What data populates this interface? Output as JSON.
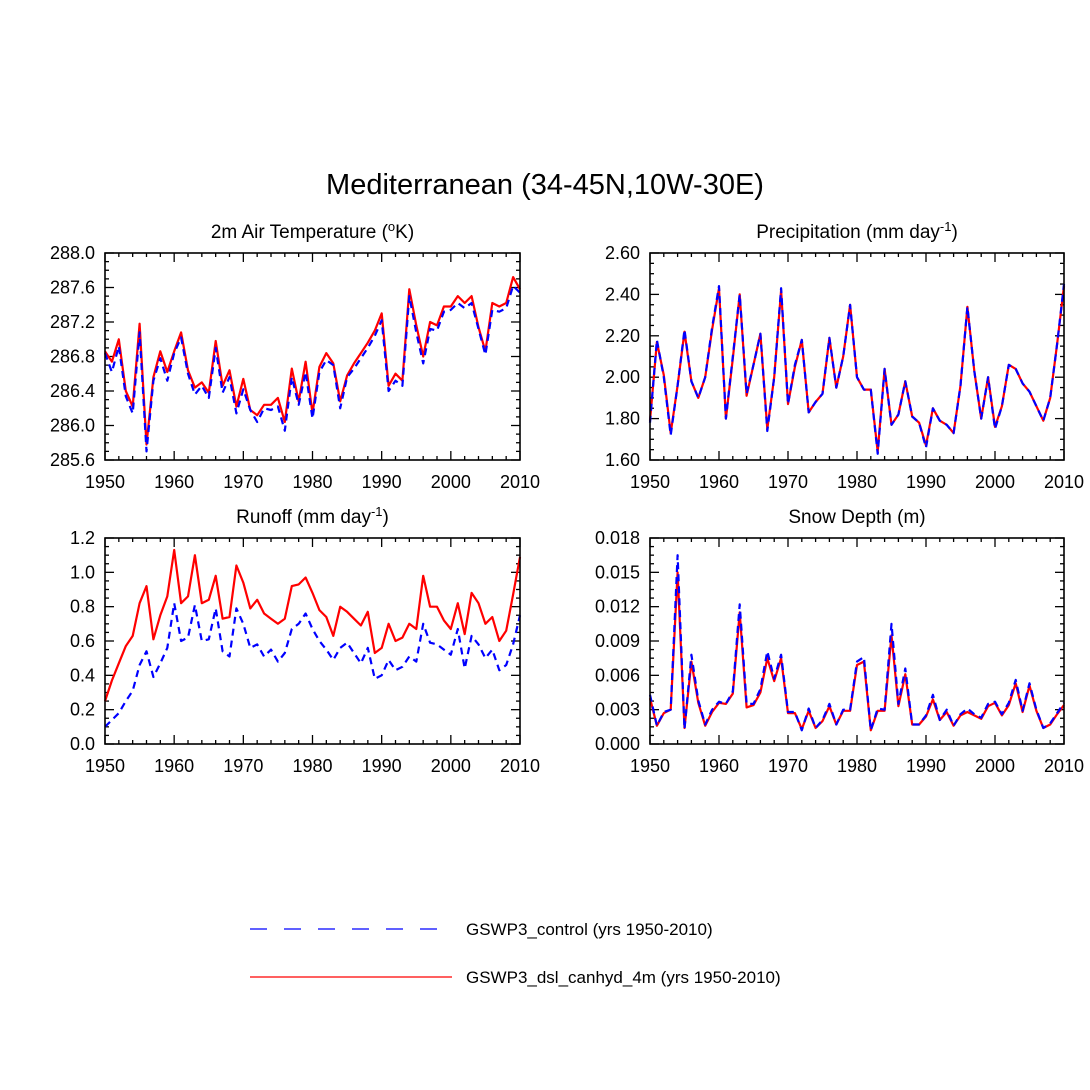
{
  "title": "Mediterranean (34-45N,10W-30E)",
  "colors": {
    "control": "#0000ff",
    "experiment": "#ff0000",
    "axis": "#000000"
  },
  "legend": [
    {
      "key": "control",
      "label": "GSWP3_control (yrs 1950-2010)",
      "style": "dashed"
    },
    {
      "key": "experiment",
      "label": "GSWP3_dsl_canhyd_4m (yrs 1950-2010)",
      "style": "solid"
    }
  ],
  "chart_data": [
    {
      "type": "line",
      "title": "2m Air Temperature (°K)",
      "title_parts": {
        "pre": "2m Air Temperature (",
        "sup": "o",
        "post": "K)"
      },
      "xlim": [
        1950,
        2010
      ],
      "ylim": [
        285.6,
        288.0
      ],
      "xticks": [
        1950,
        1960,
        1970,
        1980,
        1990,
        2000,
        2010
      ],
      "xtick_labels": [
        "1950",
        "1960",
        "1970",
        "1980",
        "1990",
        "2000",
        "2010"
      ],
      "yticks": [
        285.6,
        286.0,
        286.4,
        286.8,
        287.2,
        287.6,
        288.0
      ],
      "ytick_labels": [
        "285.6",
        "286.0",
        "286.4",
        "286.8",
        "287.2",
        "287.6",
        "288.0"
      ],
      "x_start": 1950,
      "series": [
        {
          "name": "GSWP3_control",
          "key": "control",
          "values": [
            286.84,
            286.62,
            286.92,
            286.34,
            286.14,
            287.08,
            285.7,
            286.52,
            286.78,
            286.52,
            286.84,
            287.02,
            286.6,
            286.36,
            286.46,
            286.32,
            286.9,
            286.38,
            286.56,
            286.14,
            286.42,
            286.18,
            286.04,
            286.2,
            286.18,
            286.22,
            285.94,
            286.56,
            286.24,
            286.62,
            286.08,
            286.62,
            286.76,
            286.7,
            286.2,
            286.56,
            286.66,
            286.78,
            286.9,
            287.04,
            287.22,
            286.4,
            286.52,
            286.46,
            287.5,
            287.08,
            286.72,
            287.12,
            287.1,
            287.32,
            287.34,
            287.42,
            287.36,
            287.42,
            287.12,
            286.82,
            287.34,
            287.32,
            287.36,
            287.62,
            287.54
          ]
        },
        {
          "name": "GSWP3_dsl_canhyd_4m",
          "key": "experiment",
          "values": [
            286.86,
            286.74,
            287.0,
            286.4,
            286.22,
            287.18,
            285.78,
            286.56,
            286.86,
            286.62,
            286.86,
            287.08,
            286.64,
            286.44,
            286.5,
            286.38,
            286.98,
            286.46,
            286.64,
            286.22,
            286.54,
            286.18,
            286.12,
            286.24,
            286.24,
            286.32,
            286.04,
            286.66,
            286.28,
            286.74,
            286.14,
            286.68,
            286.84,
            286.72,
            286.28,
            286.58,
            286.72,
            286.84,
            286.96,
            287.1,
            287.3,
            286.46,
            286.6,
            286.52,
            287.58,
            287.16,
            286.8,
            287.2,
            287.16,
            287.38,
            287.38,
            287.5,
            287.42,
            287.5,
            287.14,
            286.86,
            287.42,
            287.38,
            287.42,
            287.72,
            287.58
          ]
        }
      ]
    },
    {
      "type": "line",
      "title": "Precipitation (mm day-1)",
      "title_parts": {
        "pre": "Precipitation (mm day",
        "sup": "-1",
        "post": ")"
      },
      "xlim": [
        1950,
        2010
      ],
      "ylim": [
        1.6,
        2.6
      ],
      "xticks": [
        1950,
        1960,
        1970,
        1980,
        1990,
        2000,
        2010
      ],
      "xtick_labels": [
        "1950",
        "1960",
        "1970",
        "1980",
        "1990",
        "2000",
        "2010"
      ],
      "yticks": [
        1.6,
        1.8,
        2.0,
        2.2,
        2.4,
        2.6
      ],
      "ytick_labels": [
        "1.60",
        "1.80",
        "2.00",
        "2.20",
        "2.40",
        "2.60"
      ],
      "x_start": 1950,
      "series": [
        {
          "name": "GSWP3_control",
          "key": "control",
          "values": [
            1.78,
            2.18,
            2.0,
            1.72,
            1.96,
            2.23,
            1.98,
            1.9,
            2.0,
            2.24,
            2.44,
            1.8,
            2.1,
            2.4,
            1.92,
            2.06,
            2.21,
            1.74,
            2.0,
            2.43,
            1.87,
            2.06,
            2.18,
            1.83,
            1.88,
            1.92,
            2.19,
            1.95,
            2.1,
            2.35,
            2.0,
            1.94,
            1.94,
            1.63,
            2.04,
            1.77,
            1.82,
            1.98,
            1.81,
            1.78,
            1.66,
            1.85,
            1.79,
            1.77,
            1.73,
            1.96,
            2.34,
            2.03,
            1.8,
            2.0,
            1.75,
            1.86,
            2.06,
            2.04,
            1.97,
            1.93,
            1.86,
            1.79,
            1.9,
            2.16,
            2.45
          ]
        },
        {
          "name": "GSWP3_dsl_canhyd_4m",
          "key": "experiment",
          "values": [
            1.79,
            2.17,
            2.01,
            1.73,
            1.96,
            2.22,
            1.98,
            1.9,
            2.0,
            2.23,
            2.43,
            1.8,
            2.09,
            2.4,
            1.91,
            2.06,
            2.21,
            1.75,
            2.0,
            2.42,
            1.87,
            2.05,
            2.18,
            1.83,
            1.88,
            1.92,
            2.19,
            1.95,
            2.1,
            2.35,
            2.0,
            1.94,
            1.94,
            1.64,
            2.04,
            1.77,
            1.82,
            1.98,
            1.81,
            1.78,
            1.67,
            1.85,
            1.79,
            1.77,
            1.73,
            1.96,
            2.34,
            2.03,
            1.8,
            2.0,
            1.76,
            1.86,
            2.06,
            2.04,
            1.97,
            1.93,
            1.86,
            1.79,
            1.9,
            2.16,
            2.44
          ]
        }
      ]
    },
    {
      "type": "line",
      "title": "Runoff (mm day-1)",
      "title_parts": {
        "pre": "Runoff (mm day",
        "sup": "-1",
        "post": ")"
      },
      "xlim": [
        1950,
        2010
      ],
      "ylim": [
        0.0,
        1.2
      ],
      "xticks": [
        1950,
        1960,
        1970,
        1980,
        1990,
        2000,
        2010
      ],
      "xtick_labels": [
        "1950",
        "1960",
        "1970",
        "1980",
        "1990",
        "2000",
        "2010"
      ],
      "yticks": [
        0.0,
        0.2,
        0.4,
        0.6,
        0.8,
        1.0,
        1.2
      ],
      "ytick_labels": [
        "0.0",
        "0.2",
        "0.4",
        "0.6",
        "0.8",
        "1.0",
        "1.2"
      ],
      "x_start": 1950,
      "series": [
        {
          "name": "GSWP3_control",
          "key": "control",
          "values": [
            0.1,
            0.14,
            0.18,
            0.25,
            0.31,
            0.46,
            0.54,
            0.39,
            0.47,
            0.56,
            0.82,
            0.6,
            0.62,
            0.81,
            0.6,
            0.61,
            0.79,
            0.54,
            0.51,
            0.79,
            0.7,
            0.56,
            0.58,
            0.51,
            0.55,
            0.48,
            0.53,
            0.67,
            0.7,
            0.76,
            0.67,
            0.6,
            0.55,
            0.49,
            0.56,
            0.59,
            0.53,
            0.47,
            0.56,
            0.38,
            0.4,
            0.49,
            0.43,
            0.45,
            0.51,
            0.48,
            0.7,
            0.59,
            0.58,
            0.55,
            0.52,
            0.67,
            0.44,
            0.63,
            0.58,
            0.5,
            0.55,
            0.43,
            0.46,
            0.58,
            0.75
          ]
        },
        {
          "name": "GSWP3_dsl_canhyd_4m",
          "key": "experiment",
          "values": [
            0.25,
            0.37,
            0.47,
            0.57,
            0.63,
            0.82,
            0.92,
            0.61,
            0.75,
            0.86,
            1.13,
            0.82,
            0.86,
            1.1,
            0.82,
            0.84,
            0.98,
            0.73,
            0.74,
            1.04,
            0.94,
            0.79,
            0.84,
            0.76,
            0.73,
            0.7,
            0.73,
            0.92,
            0.93,
            0.97,
            0.88,
            0.78,
            0.74,
            0.63,
            0.8,
            0.77,
            0.73,
            0.69,
            0.77,
            0.53,
            0.56,
            0.7,
            0.6,
            0.62,
            0.7,
            0.67,
            0.98,
            0.8,
            0.8,
            0.72,
            0.67,
            0.82,
            0.64,
            0.88,
            0.82,
            0.7,
            0.74,
            0.6,
            0.66,
            0.87,
            1.09
          ]
        }
      ]
    },
    {
      "type": "line",
      "title": "Snow Depth (m)",
      "title_parts": {
        "pre": "Snow Depth (m)",
        "sup": "",
        "post": ""
      },
      "xlim": [
        1950,
        2010
      ],
      "ylim": [
        0.0,
        0.018
      ],
      "xticks": [
        1950,
        1960,
        1970,
        1980,
        1990,
        2000,
        2010
      ],
      "xtick_labels": [
        "1950",
        "1960",
        "1970",
        "1980",
        "1990",
        "2000",
        "2010"
      ],
      "yticks": [
        0.0,
        0.003,
        0.006,
        0.009,
        0.012,
        0.015,
        0.018
      ],
      "ytick_labels": [
        "0.000",
        "0.003",
        "0.006",
        "0.009",
        "0.012",
        "0.015",
        "0.018"
      ],
      "x_start": 1950,
      "series": [
        {
          "name": "GSWP3_control",
          "key": "control",
          "values": [
            0.0043,
            0.0016,
            0.0028,
            0.003,
            0.0165,
            0.0013,
            0.0078,
            0.0038,
            0.0017,
            0.003,
            0.0037,
            0.0035,
            0.0046,
            0.0122,
            0.0035,
            0.0035,
            0.0048,
            0.0081,
            0.0057,
            0.0078,
            0.0028,
            0.0028,
            0.0012,
            0.0031,
            0.0014,
            0.0021,
            0.0035,
            0.0017,
            0.003,
            0.003,
            0.0072,
            0.0076,
            0.0012,
            0.0031,
            0.003,
            0.0105,
            0.0035,
            0.0066,
            0.0017,
            0.0017,
            0.0025,
            0.0043,
            0.0021,
            0.003,
            0.0016,
            0.0026,
            0.0031,
            0.0026,
            0.0023,
            0.0035,
            0.0037,
            0.0026,
            0.0036,
            0.0056,
            0.0029,
            0.0053,
            0.003,
            0.0014,
            0.0018,
            0.0027,
            0.0036
          ]
        },
        {
          "name": "GSWP3_dsl_canhyd_4m",
          "key": "experiment",
          "values": [
            0.004,
            0.0016,
            0.0027,
            0.003,
            0.015,
            0.0014,
            0.0072,
            0.0036,
            0.0016,
            0.0028,
            0.0036,
            0.0035,
            0.0044,
            0.0115,
            0.0032,
            0.0034,
            0.0045,
            0.0075,
            0.0055,
            0.0075,
            0.0027,
            0.0027,
            0.0013,
            0.0029,
            0.0014,
            0.002,
            0.0033,
            0.0017,
            0.0029,
            0.0029,
            0.0069,
            0.0072,
            0.0012,
            0.0029,
            0.0029,
            0.0095,
            0.0033,
            0.0061,
            0.0017,
            0.0017,
            0.0024,
            0.0039,
            0.0021,
            0.0028,
            0.0016,
            0.0025,
            0.0028,
            0.0025,
            0.0022,
            0.0033,
            0.0036,
            0.0025,
            0.0034,
            0.0053,
            0.0028,
            0.0051,
            0.0029,
            0.0014,
            0.0017,
            0.0026,
            0.0034
          ]
        }
      ]
    }
  ]
}
